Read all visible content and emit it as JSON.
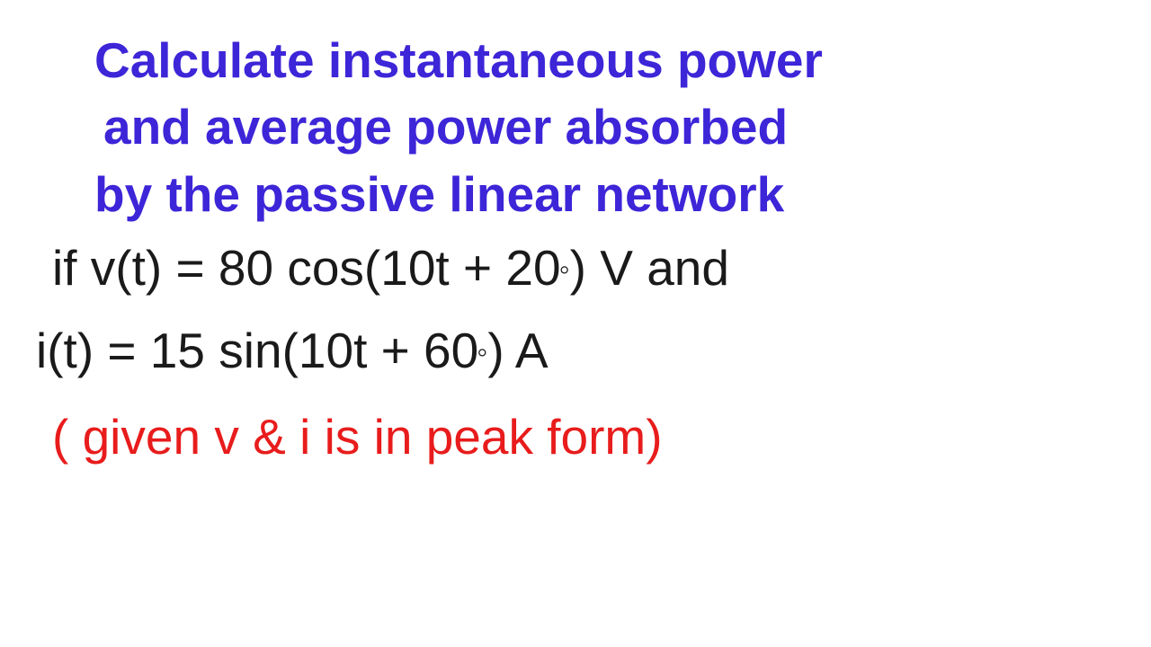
{
  "colors": {
    "title_color": "#3d25d8",
    "body_color": "#1a1a1a",
    "note_color": "#e81c1c",
    "background": "#ffffff"
  },
  "typography": {
    "title_fontsize": 55,
    "body_fontsize": 55,
    "note_fontsize": 55,
    "font_family": "Arial, Helvetica, sans-serif",
    "title_weight": "bold",
    "body_weight": "500"
  },
  "problem": {
    "title_line1": "Calculate instantaneous power",
    "title_line2": "and average power absorbed",
    "title_line3": "by the passive linear network",
    "given_line1_prefix": " if v(t) = 80 cos(10t + 20",
    "given_line1_suffix": ") V and",
    "given_line2_prefix": "i(t) = 15 sin(10t + 60",
    "given_line2_suffix": ") A",
    "note": "( given v & i is in peak form)"
  },
  "values": {
    "voltage_amplitude": 80,
    "voltage_freq_coeff": 10,
    "voltage_phase_deg": 20,
    "voltage_unit": "V",
    "current_amplitude": 15,
    "current_freq_coeff": 10,
    "current_phase_deg": 60,
    "current_unit": "A"
  }
}
